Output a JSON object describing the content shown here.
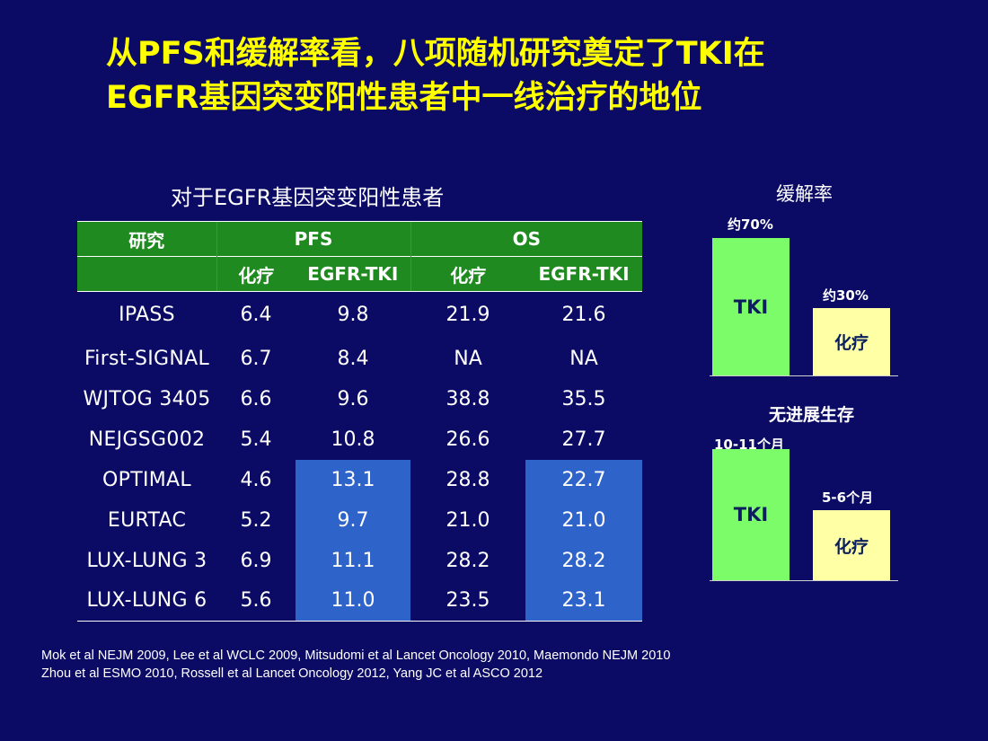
{
  "title": {
    "line1": "从PFS和缓解率看，八项随机研究奠定了TKI在",
    "line2": "EGFR基因突变阳性患者中一线治疗的地位"
  },
  "table": {
    "caption": "对于EGFR基因突变阳性患者",
    "header1": {
      "study": "研究",
      "pfs": "PFS",
      "os": "OS"
    },
    "header2": {
      "chemo_pfs": "化疗",
      "tki_pfs": "EGFR-TKI",
      "chemo_os": "化疗",
      "tki_os": "EGFR-TKI"
    },
    "rows": [
      {
        "study": "IPASS",
        "pfs_chemo": "6.4",
        "pfs_tki": "9.8",
        "os_chemo": "21.9",
        "os_tki": "21.6"
      },
      {
        "study": "First-SIGNAL",
        "pfs_chemo": "6.7",
        "pfs_tki": "8.4",
        "os_chemo": "NA",
        "os_tki": "NA"
      },
      {
        "study": "WJTOG 3405",
        "pfs_chemo": "6.6",
        "pfs_tki": "9.6",
        "os_chemo": "38.8",
        "os_tki": "35.5"
      },
      {
        "study": "NEJGSG002",
        "pfs_chemo": "5.4",
        "pfs_tki": "10.8",
        "os_chemo": "26.6",
        "os_tki": "27.7"
      },
      {
        "study": "OPTIMAL",
        "pfs_chemo": "4.6",
        "pfs_tki": "13.1",
        "os_chemo": "28.8",
        "os_tki": "22.7"
      },
      {
        "study": "EURTAC",
        "pfs_chemo": "5.2",
        "pfs_tki": "9.7",
        "os_chemo": "21.0",
        "os_tki": "21.0"
      },
      {
        "study": "LUX-LUNG 3",
        "pfs_chemo": "6.9",
        "pfs_tki": "11.1",
        "os_chemo": "28.2",
        "os_tki": "28.2"
      },
      {
        "study": "LUX-LUNG 6",
        "pfs_chemo": "5.6",
        "pfs_tki": "11.0",
        "os_chemo": "23.5",
        "os_tki": "23.1"
      }
    ],
    "highlight_color": "#2e63c9",
    "header_color": "#1f8a1f"
  },
  "references": {
    "line1": "Mok et al NEJM 2009, Lee et al WCLC 2009, Mitsudomi et al Lancet Oncology 2010, Maemondo NEJM 2010",
    "line2": "Zhou et al ESMO 2010, Rossell et al Lancet Oncology 2012, Yang JC et al  ASCO 2012"
  },
  "chart_data": [
    {
      "type": "bar",
      "title": "缓解率",
      "categories": [
        "TKI",
        "化疗"
      ],
      "values": [
        70,
        30
      ],
      "value_labels": [
        "约70%",
        "约30%"
      ],
      "colors": [
        "#7dfc6a",
        "#ffffa6"
      ]
    },
    {
      "type": "bar",
      "title": "无进展生存",
      "categories": [
        "TKI",
        "化疗"
      ],
      "values": [
        10.5,
        5.5
      ],
      "value_labels": [
        "10-11个月",
        "5-6个月"
      ],
      "colors": [
        "#7dfc6a",
        "#ffffa6"
      ]
    }
  ]
}
